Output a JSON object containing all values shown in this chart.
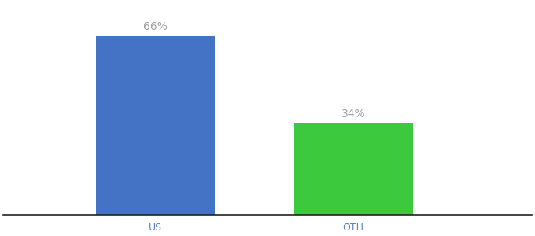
{
  "categories": [
    "US",
    "OTH"
  ],
  "values": [
    66,
    34
  ],
  "bar_colors": [
    "#4472c4",
    "#3dc93d"
  ],
  "label_texts": [
    "66%",
    "34%"
  ],
  "label_color": "#a0a0a0",
  "ylabel": "",
  "ylim": [
    0,
    78
  ],
  "background_color": "#ffffff",
  "bar_width": 0.18,
  "label_fontsize": 10,
  "tick_fontsize": 9,
  "tick_color": "#5b7fc4",
  "spine_color": "#222222"
}
